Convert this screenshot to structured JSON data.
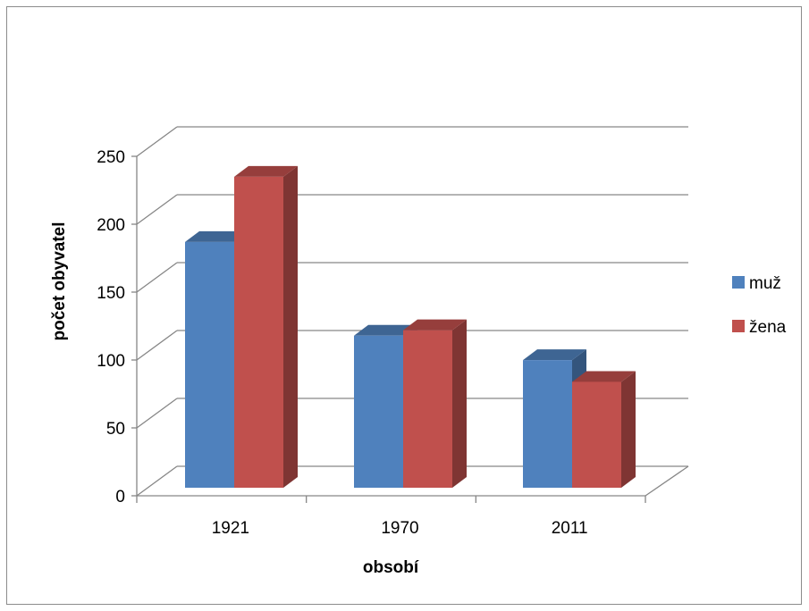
{
  "chart_data": {
    "type": "bar",
    "style": "3d-clustered-column",
    "categories": [
      "1921",
      "1970",
      "2011"
    ],
    "series": [
      {
        "name": "muž",
        "values": [
          181,
          112,
          94
        ],
        "color": "#4f81bd"
      },
      {
        "name": "žena",
        "values": [
          229,
          116,
          78
        ],
        "color": "#c0504d"
      }
    ],
    "xlabel": "obsobí",
    "ylabel": "počet obyvatel",
    "ylim": [
      0,
      250
    ],
    "yticks": [
      0,
      50,
      100,
      150,
      200,
      250
    ],
    "grid": true,
    "legend_position": "right"
  }
}
